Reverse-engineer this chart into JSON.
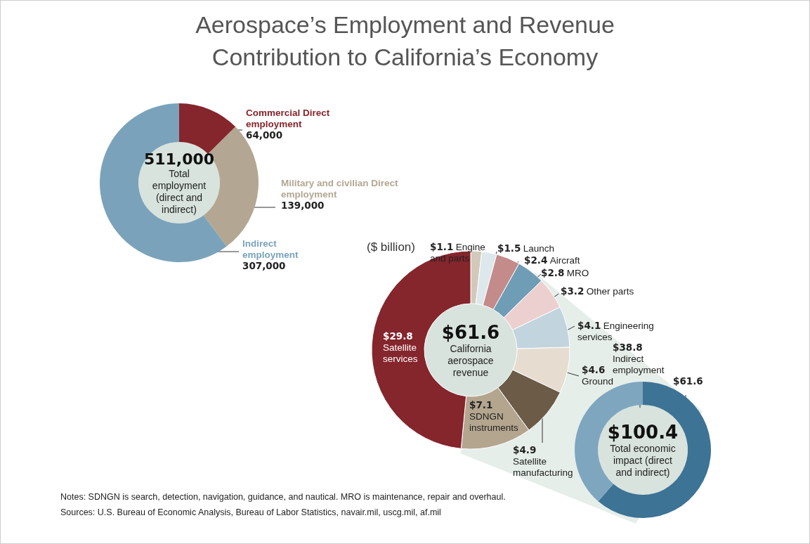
{
  "chart_data": [
    {
      "type": "donut",
      "title": "Aerospace’s Employment and Revenue Contribution to California’s Economy",
      "categories": [
        "Commercial Direct employment",
        "Military and civilian Direct employment",
        "Indirect employment"
      ],
      "values": [
        64000,
        139000,
        307000
      ],
      "value_labels": [
        "64,000",
        "139,000",
        "307,000"
      ],
      "colors": [
        "#85252c",
        "#b3a793",
        "#7aa3bb"
      ],
      "annotations": [
        "511,000",
        "Total employment (direct and indirect)"
      ],
      "legend": false
    },
    {
      "type": "donut",
      "title": "($ billion)",
      "categories": [
        "Engine and parts",
        "Launch",
        "Aircraft",
        "MRO",
        "Other parts",
        "Engineering services",
        "Ground",
        "Satellite manufacturing",
        "SDNGN instruments",
        "Satellite services"
      ],
      "values": [
        1.1,
        1.5,
        2.4,
        2.8,
        3.2,
        4.1,
        4.6,
        4.9,
        7.1,
        29.8
      ],
      "value_labels": [
        "$1.1",
        "$1.5",
        "$2.4",
        "$2.8",
        "$3.2",
        "$4.1",
        "$4.6",
        "$4.9",
        "$7.1",
        "$29.8"
      ],
      "colors": [
        "#d3c9bb",
        "#dde8ec",
        "#c48b8b",
        "#6f9db6",
        "#ecd0cf",
        "#c2d4de",
        "#e6ddd0",
        "#6b5b47",
        "#b4a58f",
        "#85252c"
      ],
      "annotations": [
        "$61.6",
        "California aerospace revenue",
        "Notes: SDNGN is search, detection, navigation, guidance, and nautical. MRO is maintenance, repair and overhaul.",
        "Sources: U.S. Bureau of Economic Analysis, Bureau of Labor Statistics, navair.mil, uscg.mil, af.mil"
      ],
      "legend": false
    },
    {
      "type": "donut",
      "categories": [
        null,
        "Indirect employment"
      ],
      "values": [
        61.6,
        38.8
      ],
      "value_labels": [
        "$61.6",
        "$38.8"
      ],
      "colors": [
        "#3d7395",
        "#7fa6bf"
      ],
      "annotations": [
        "$100.4",
        "Total economic impact (direct and indirect)"
      ],
      "legend": false
    }
  ]
}
